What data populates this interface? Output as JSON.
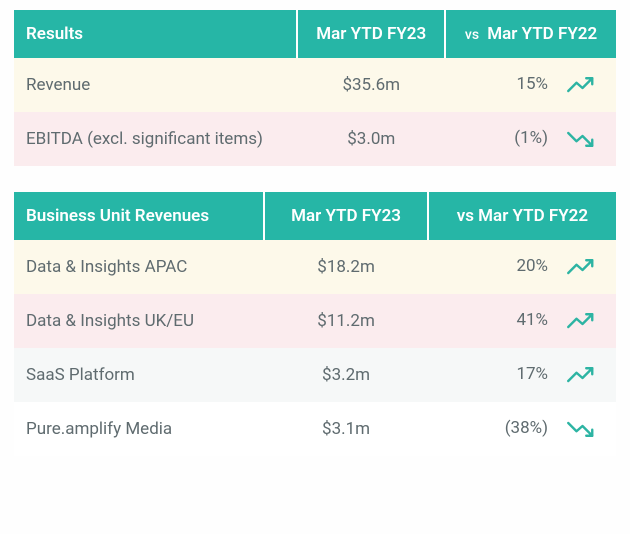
{
  "colors": {
    "header_bg": "#26b6a6",
    "header_text": "#ffffff",
    "body_text": "#5f6b6f",
    "arrow_color": "#2db4a3",
    "row_cream": "#fdf9ea",
    "row_pink": "#fbecee",
    "row_white": "#ffffff",
    "row_gray": "#f6f8f8"
  },
  "typography": {
    "header_fontsize": 17,
    "body_fontsize": 17,
    "font_family": "system-ui"
  },
  "table1": {
    "headers": {
      "col1": "Results",
      "col2": "Mar YTD FY23",
      "col3_prefix": "vs",
      "col3": "Mar YTD FY22"
    },
    "column_align": [
      "left",
      "center",
      "right"
    ],
    "rows": [
      {
        "label": "Revenue",
        "value": "$35.6m",
        "change": "15%",
        "direction": "up",
        "row_color": "cream"
      },
      {
        "label": "EBITDA (excl. significant items)",
        "value": "$3.0m",
        "change": "(1%)",
        "direction": "down",
        "row_color": "pink"
      }
    ]
  },
  "table2": {
    "headers": {
      "col1": "Business Unit Revenues",
      "col2": "Mar YTD FY23",
      "col3": "vs Mar YTD FY22"
    },
    "column_align": [
      "left",
      "center",
      "right"
    ],
    "rows": [
      {
        "label": "Data & Insights APAC",
        "value": "$18.2m",
        "change": "20%",
        "direction": "up",
        "row_color": "cream"
      },
      {
        "label": "Data & Insights UK/EU",
        "value": "$11.2m",
        "change": "41%",
        "direction": "up",
        "row_color": "pink"
      },
      {
        "label": "SaaS Platform",
        "value": "$3.2m",
        "change": "17%",
        "direction": "up",
        "row_color": "gray"
      },
      {
        "label": "Pure.amplify Media",
        "value": "$3.1m",
        "change": "(38%)",
        "direction": "down",
        "row_color": "white"
      }
    ]
  }
}
